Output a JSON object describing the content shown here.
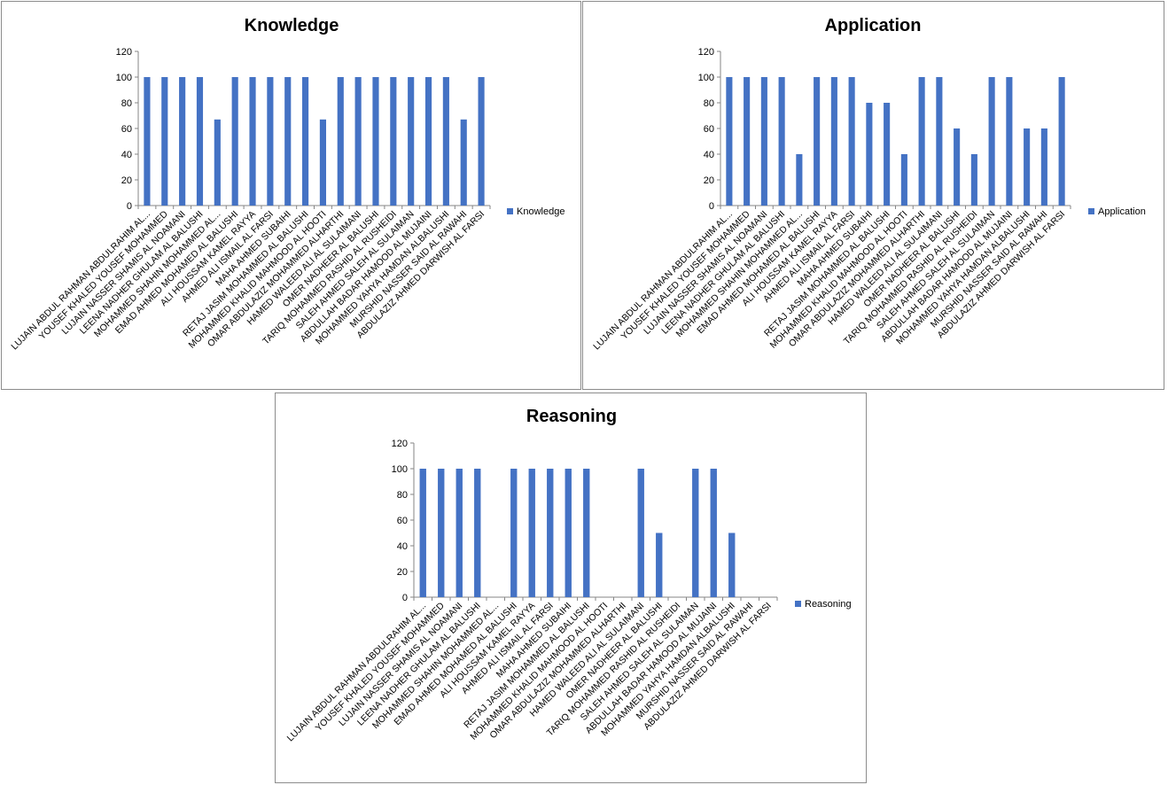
{
  "chart_data": [
    {
      "type": "bar",
      "title": "Knowledge",
      "legend": "Knowledge",
      "legend_position": "right",
      "ylim": [
        0,
        120
      ],
      "yticks": [
        0,
        20,
        40,
        60,
        80,
        100,
        120
      ],
      "color": "#4472C4",
      "categories": [
        "LUJAIN ABDUL RAHMAN ABDULRAHIM AL...",
        "YOUSEF KHALED YOUSEF MOHAMMED",
        "LUJAIN NASSER SHAMIS AL NOAMANI",
        "LEENA NADHER GHULAM AL BALUSHI",
        "MOHAMMED SHAHIN MOHAMMED AL...",
        "EMAD AHMED MOHAMED AL BALUSHI",
        "ALI HOUSSAM KAMEL RAYYA",
        "AHMED ALI ISMAIL AL FARSI",
        "MAHA AHMED SUBAIHI",
        "RETAJ JASIM MOHAMMED AL BALUSHI",
        "MOHAMMED KHALID MAHMOOD AL HOOTI",
        "OMAR ABDULAZIZ MOHAMMED ALHARTHI",
        "HAMED WALEED ALI AL SULAIMANI",
        "OMER NADHEER AL BALUSHI",
        "TARIQ MOHAMMED RASHID AL RUSHEIDI",
        "SALEH AHMED SALEH AL SULAIMAN",
        "ABDULLAH BADAR HAMOOD AL MUJAINI",
        "MOHAMMED YAHYA HAMDAN ALBALUSHI",
        "MURSHID NASSER SAID AL RAWAHI",
        "ABDULAZIZ AHMED DARWISH AL FARSI"
      ],
      "values": [
        100,
        100,
        100,
        100,
        67,
        100,
        100,
        100,
        100,
        100,
        67,
        100,
        100,
        100,
        100,
        100,
        100,
        100,
        67,
        100
      ]
    },
    {
      "type": "bar",
      "title": "Application",
      "legend": "Application",
      "legend_position": "right",
      "ylim": [
        0,
        120
      ],
      "yticks": [
        0,
        20,
        40,
        60,
        80,
        100,
        120
      ],
      "color": "#4472C4",
      "categories": [
        "LUJAIN ABDUL RAHMAN ABDULRAHIM AL...",
        "YOUSEF KHALED YOUSEF MOHAMMED",
        "LUJAIN NASSER SHAMIS AL NOAMANI",
        "LEENA NADHER GHULAM AL BALUSHI",
        "MOHAMMED SHAHIN MOHAMMED AL...",
        "EMAD AHMED MOHAMED AL BALUSHI",
        "ALI HOUSSAM KAMEL RAYYA",
        "AHMED ALI ISMAIL AL FARSI",
        "MAHA AHMED SUBAIHI",
        "RETAJ JASIM MOHAMMED AL BALUSHI",
        "MOHAMMED KHALID MAHMOOD AL HOOTI",
        "OMAR ABDULAZIZ MOHAMMED ALHARTHI",
        "HAMED WALEED ALI AL SULAIMANI",
        "OMER NADHEER AL BALUSHI",
        "TARIQ MOHAMMED RASHID AL RUSHEIDI",
        "SALEH AHMED SALEH AL SULAIMAN",
        "ABDULLAH BADAR HAMOOD AL MUJAINI",
        "MOHAMMED YAHYA HAMDAN ALBALUSHI",
        "MURSHID NASSER SAID AL RAWAHI",
        "ABDULAZIZ AHMED DARWISH AL FARSI"
      ],
      "values": [
        100,
        100,
        100,
        100,
        40,
        100,
        100,
        100,
        80,
        80,
        40,
        100,
        100,
        60,
        40,
        100,
        100,
        60,
        60,
        100
      ]
    },
    {
      "type": "bar",
      "title": "Reasoning",
      "legend": "Reasoning",
      "legend_position": "right",
      "ylim": [
        0,
        120
      ],
      "yticks": [
        0,
        20,
        40,
        60,
        80,
        100,
        120
      ],
      "color": "#4472C4",
      "categories": [
        "LUJAIN ABDUL RAHMAN ABDULRAHIM AL...",
        "YOUSEF KHALED YOUSEF MOHAMMED",
        "LUJAIN NASSER SHAMIS AL NOAMANI",
        "LEENA NADHER GHULAM AL BALUSHI",
        "MOHAMMED SHAHIN MOHAMMED AL...",
        "EMAD AHMED MOHAMED AL BALUSHI",
        "ALI HOUSSAM KAMEL RAYYA",
        "AHMED ALI ISMAIL AL FARSI",
        "MAHA AHMED SUBAIHI",
        "RETAJ JASIM MOHAMMED AL BALUSHI",
        "MOHAMMED KHALID MAHMOOD AL HOOTI",
        "OMAR ABDULAZIZ MOHAMMED ALHARTHI",
        "HAMED WALEED ALI AL SULAIMANI",
        "OMER NADHEER AL BALUSHI",
        "TARIQ MOHAMMED RASHID AL RUSHEIDI",
        "SALEH AHMED SALEH AL SULAIMAN",
        "ABDULLAH BADAR HAMOOD AL MUJAINI",
        "MOHAMMED YAHYA HAMDAN ALBALUSHI",
        "MURSHID NASSER SAID AL RAWAHI",
        "ABDULAZIZ AHMED DARWISH AL FARSI"
      ],
      "values": [
        100,
        100,
        100,
        100,
        0,
        100,
        100,
        100,
        100,
        100,
        0,
        0,
        100,
        50,
        0,
        100,
        100,
        50,
        0,
        0
      ]
    }
  ]
}
